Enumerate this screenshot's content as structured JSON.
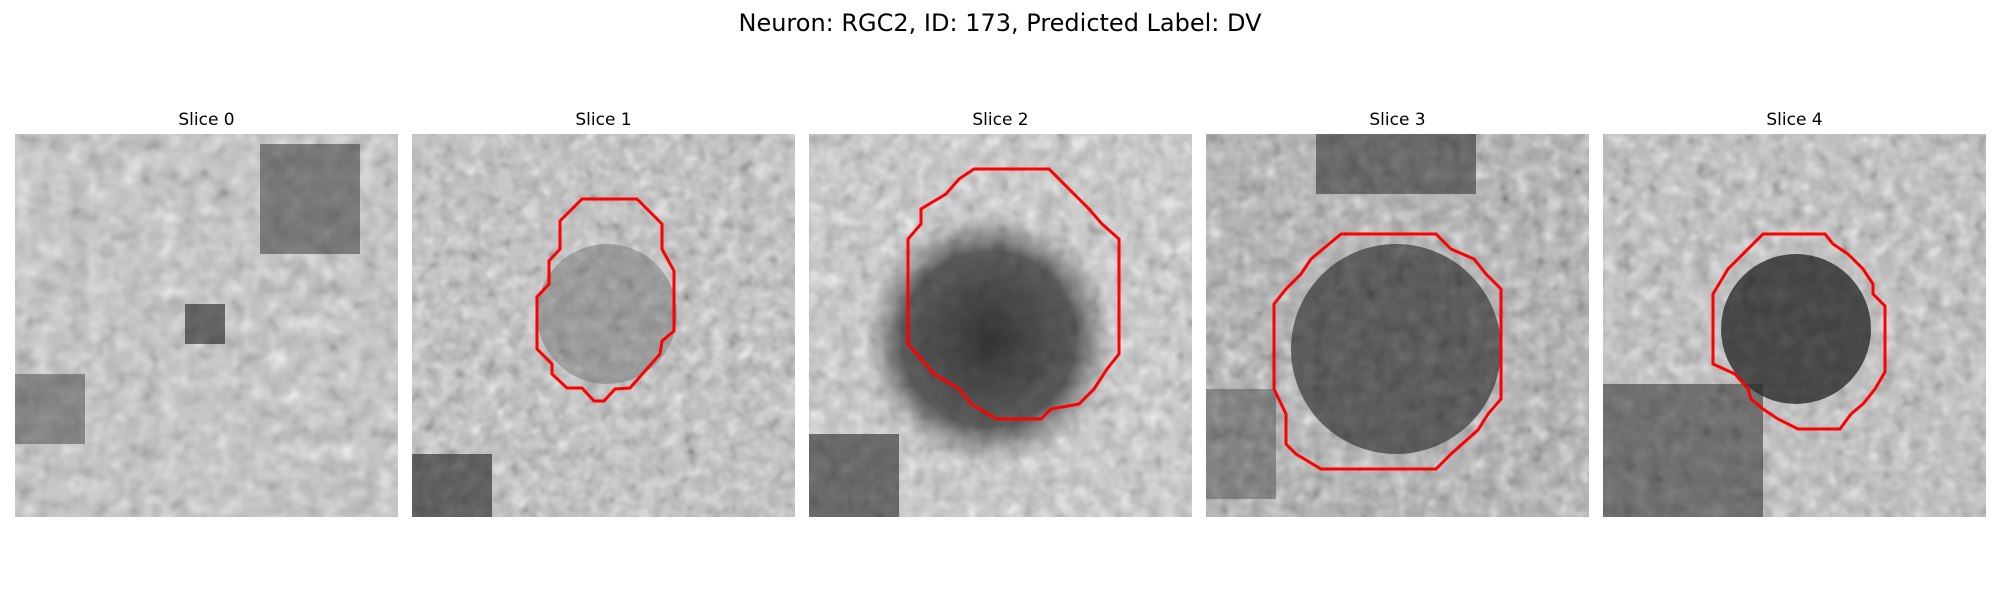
{
  "figure": {
    "title": "Neuron: RGC2, ID: 173, Predicted Label: DV",
    "contour_color": "#ff0000",
    "colormap": "gray"
  },
  "panels": [
    {
      "title": "Slice 0",
      "has_contour": false,
      "description_icon": "grayscale-patch"
    },
    {
      "title": "Slice 1",
      "has_contour": true,
      "description_icon": "grayscale-patch"
    },
    {
      "title": "Slice 2",
      "has_contour": true,
      "description_icon": "grayscale-patch"
    },
    {
      "title": "Slice 3",
      "has_contour": true,
      "description_icon": "grayscale-patch"
    },
    {
      "title": "Slice 4",
      "has_contour": true,
      "description_icon": "grayscale-patch"
    }
  ]
}
